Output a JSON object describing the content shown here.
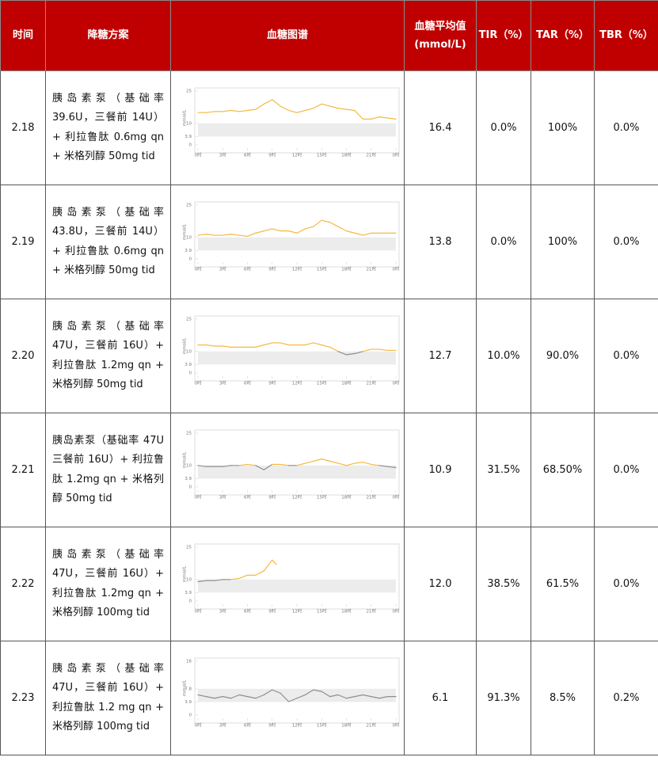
{
  "header": [
    "时间",
    "降糖方案",
    "血糖图谱",
    "血糖平均值\n(mmol/L)",
    "TIR（%）",
    "TAR（%）",
    "TBR（%）"
  ],
  "rows": [
    {
      "date": "2.18",
      "regimen": "胰岛素泵（基础率 39.6U，三餐前 14U）+ 利拉鲁肽 0.6mg qn + 米格列醇 50mg tid",
      "chart": {
        "y_label": "mmol/L",
        "ylim": [
          0,
          25
        ],
        "yticks": [
          25,
          10,
          3.9,
          0
        ],
        "xlim": [
          0,
          24
        ],
        "xticks": [
          {
            "value": 0,
            "label": "0时"
          },
          {
            "value": 3,
            "label": "3时"
          },
          {
            "value": 6,
            "label": "6时"
          },
          {
            "value": 9,
            "label": "9时"
          },
          {
            "value": 12,
            "label": "12时"
          },
          {
            "value": 15,
            "label": "15时"
          },
          {
            "value": 18,
            "label": "18时"
          },
          {
            "value": 21,
            "label": "21时"
          },
          {
            "value": 24,
            "label": "0时"
          }
        ],
        "x": [
          0,
          1,
          2,
          3,
          4,
          5,
          6,
          7,
          8,
          9,
          10,
          11,
          12,
          13,
          14,
          15,
          16,
          17,
          18,
          19,
          20,
          21,
          22,
          23,
          24
        ],
        "values": [
          15,
          15,
          15.5,
          15.5,
          16,
          15.5,
          16,
          16.5,
          19,
          21,
          18,
          16,
          15,
          16,
          17,
          19,
          18,
          17,
          16.5,
          16,
          12,
          12,
          13,
          12.5,
          12
        ]
      },
      "mean": "16.4",
      "tir": "0.0%",
      "tar": "100%",
      "tbr": "0.0%"
    },
    {
      "date": "2.19",
      "regimen": "胰岛素泵（基础率 43.8U，三餐前 14U）+ 利拉鲁肽 0.6mg qn + 米格列醇 50mg tid",
      "chart": {
        "y_label": "mmol/L",
        "ylim": [
          0,
          25
        ],
        "yticks": [
          25,
          10,
          3.9,
          0
        ],
        "xlim": [
          0,
          24
        ],
        "xticks": [
          {
            "value": 0,
            "label": "0时"
          },
          {
            "value": 3,
            "label": "3时"
          },
          {
            "value": 6,
            "label": "6时"
          },
          {
            "value": 9,
            "label": "9时"
          },
          {
            "value": 12,
            "label": "12时"
          },
          {
            "value": 15,
            "label": "15时"
          },
          {
            "value": 18,
            "label": "18时"
          },
          {
            "value": 21,
            "label": "21时"
          },
          {
            "value": 24,
            "label": "0时"
          }
        ],
        "x": [
          0,
          1,
          2,
          3,
          4,
          5,
          6,
          7,
          8,
          9,
          10,
          11,
          12,
          13,
          14,
          15,
          16,
          17,
          18,
          19,
          20,
          21,
          22,
          23,
          24
        ],
        "values": [
          11,
          11.5,
          11,
          11,
          11.5,
          11,
          10.5,
          12,
          13,
          14,
          13,
          13,
          12,
          14,
          15,
          18,
          17,
          15,
          13,
          12,
          11,
          12,
          12,
          12,
          12
        ]
      },
      "mean": "13.8",
      "tir": "0.0%",
      "tar": "100%",
      "tbr": "0.0%"
    },
    {
      "date": "2.20",
      "regimen": "胰岛素泵（基础率 47U，三餐前 16U）+ 利拉鲁肽 1.2mg qn + 米格列醇 50mg tid",
      "chart": {
        "y_label": "mmol/L",
        "ylim": [
          0,
          25
        ],
        "yticks": [
          25,
          10,
          3.9,
          0
        ],
        "xlim": [
          0,
          24
        ],
        "xticks": [
          {
            "value": 0,
            "label": "0时"
          },
          {
            "value": 3,
            "label": "3时"
          },
          {
            "value": 6,
            "label": "6时"
          },
          {
            "value": 9,
            "label": "9时"
          },
          {
            "value": 12,
            "label": "12时"
          },
          {
            "value": 15,
            "label": "15时"
          },
          {
            "value": 18,
            "label": "18时"
          },
          {
            "value": 21,
            "label": "21时"
          },
          {
            "value": 24,
            "label": "0时"
          }
        ],
        "x": [
          0,
          1,
          2,
          3,
          4,
          5,
          6,
          7,
          8,
          9,
          10,
          11,
          12,
          13,
          14,
          15,
          16,
          17,
          18,
          19,
          20,
          21,
          22,
          23,
          24
        ],
        "values": [
          13,
          13,
          12.5,
          12.5,
          12,
          12,
          12,
          12,
          13,
          14,
          14,
          13,
          13,
          13,
          14,
          13,
          12,
          10,
          8.5,
          9,
          10,
          11,
          11,
          10.5,
          10.5
        ]
      },
      "mean": "12.7",
      "tir": "10.0%",
      "tar": "90.0%",
      "tbr": "0.0%"
    },
    {
      "date": "2.21",
      "regimen": "胰岛素泵（基础率 47U 三餐前 16U）+ 利拉鲁肽 1.2mg qn + 米格列醇 50mg tid",
      "chart": {
        "y_label": "mmol/L",
        "ylim": [
          0,
          25
        ],
        "yticks": [
          25,
          10,
          3.9,
          0
        ],
        "xlim": [
          0,
          24
        ],
        "xticks": [
          {
            "value": 0,
            "label": "0时"
          },
          {
            "value": 3,
            "label": "3时"
          },
          {
            "value": 6,
            "label": "6时"
          },
          {
            "value": 9,
            "label": "9时"
          },
          {
            "value": 12,
            "label": "12时"
          },
          {
            "value": 15,
            "label": "15时"
          },
          {
            "value": 18,
            "label": "18时"
          },
          {
            "value": 21,
            "label": "21时"
          },
          {
            "value": 24,
            "label": "0时"
          }
        ],
        "x": [
          0,
          1,
          2,
          3,
          4,
          5,
          6,
          7,
          8,
          9,
          10,
          11,
          12,
          13,
          14,
          15,
          16,
          17,
          18,
          19,
          20,
          21,
          22,
          23,
          24
        ],
        "values": [
          10,
          9.5,
          9.5,
          9.5,
          10,
          10,
          10.5,
          10,
          8,
          10.5,
          10.5,
          10,
          10,
          11,
          12,
          13,
          12,
          11,
          10,
          11,
          11.5,
          10.5,
          10,
          9.5,
          9
        ]
      },
      "mean": "10.9",
      "tir": "31.5%",
      "tar": "68.50%",
      "tbr": "0.0%"
    },
    {
      "date": "2.22",
      "regimen": "胰岛素泵（基础率 47U，三餐前 16U）+ 利拉鲁肽 1.2mg qn + 米格列醇 100mg tid",
      "chart": {
        "y_label": "mmol/L",
        "ylim": [
          0,
          25
        ],
        "yticks": [
          25,
          10,
          3.9,
          0
        ],
        "xlim": [
          0,
          24
        ],
        "xticks": [
          {
            "value": 0,
            "label": "0时"
          },
          {
            "value": 3,
            "label": "3时"
          },
          {
            "value": 6,
            "label": "6时"
          },
          {
            "value": 9,
            "label": "9时"
          },
          {
            "value": 12,
            "label": "12时"
          },
          {
            "value": 15,
            "label": "15时"
          },
          {
            "value": 18,
            "label": "18时"
          },
          {
            "value": 21,
            "label": "21时"
          },
          {
            "value": 24,
            "label": "0时"
          }
        ],
        "x": [
          0,
          1,
          2,
          3,
          4,
          5,
          6,
          7,
          8,
          9,
          9.5
        ],
        "values": [
          9,
          9.5,
          9.5,
          10,
          10,
          10.5,
          12,
          12,
          14,
          19,
          17
        ]
      },
      "mean": "12.0",
      "tir": "38.5%",
      "tar": "61.5%",
      "tbr": "0.0%"
    },
    {
      "date": "2.23",
      "regimen": "胰岛素泵（基础率 47U，三餐前 16U）+ 利拉鲁肽 1.2 mg qn + 米格列醇 100mg tid",
      "chart": {
        "y_label": "mmol/L",
        "ylim": [
          0,
          16
        ],
        "yticks": [
          16,
          7.8,
          3.9,
          0
        ],
        "xlim": [
          0,
          24
        ],
        "xticks": [
          {
            "value": 0,
            "label": "0时"
          },
          {
            "value": 3,
            "label": "3时"
          },
          {
            "value": 6,
            "label": "6时"
          },
          {
            "value": 9,
            "label": "9时"
          },
          {
            "value": 12,
            "label": "12时"
          },
          {
            "value": 15,
            "label": "15时"
          },
          {
            "value": 18,
            "label": "18时"
          },
          {
            "value": 21,
            "label": "21时"
          },
          {
            "value": 24,
            "label": "0时"
          }
        ],
        "x": [
          0,
          1,
          2,
          3,
          4,
          5,
          6,
          7,
          8,
          9,
          10,
          11,
          12,
          13,
          14,
          15,
          16,
          17,
          18,
          19,
          20,
          21,
          22,
          23,
          24
        ],
        "values": [
          6,
          5.5,
          5,
          5.5,
          5,
          6,
          5.5,
          5,
          6,
          7.5,
          6.5,
          4,
          5,
          6,
          7.5,
          7,
          5.5,
          6,
          5,
          5.5,
          6,
          5.5,
          5,
          5.5,
          5.5
        ]
      },
      "mean": "6.1",
      "tir": "91.3%",
      "tar": "8.5%",
      "tbr": "0.2%"
    }
  ]
}
